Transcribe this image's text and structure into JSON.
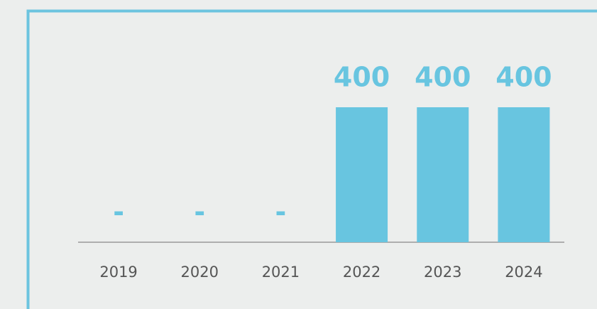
{
  "chart_data": {
    "type": "bar",
    "categories": [
      "2019",
      "2020",
      "2021",
      "2022",
      "2023",
      "2024"
    ],
    "values": [
      0,
      0,
      0,
      400,
      400,
      400
    ],
    "value_labels": [
      "-",
      "-",
      "-",
      "400",
      "400",
      "400"
    ],
    "color": "#68c5e0"
  }
}
